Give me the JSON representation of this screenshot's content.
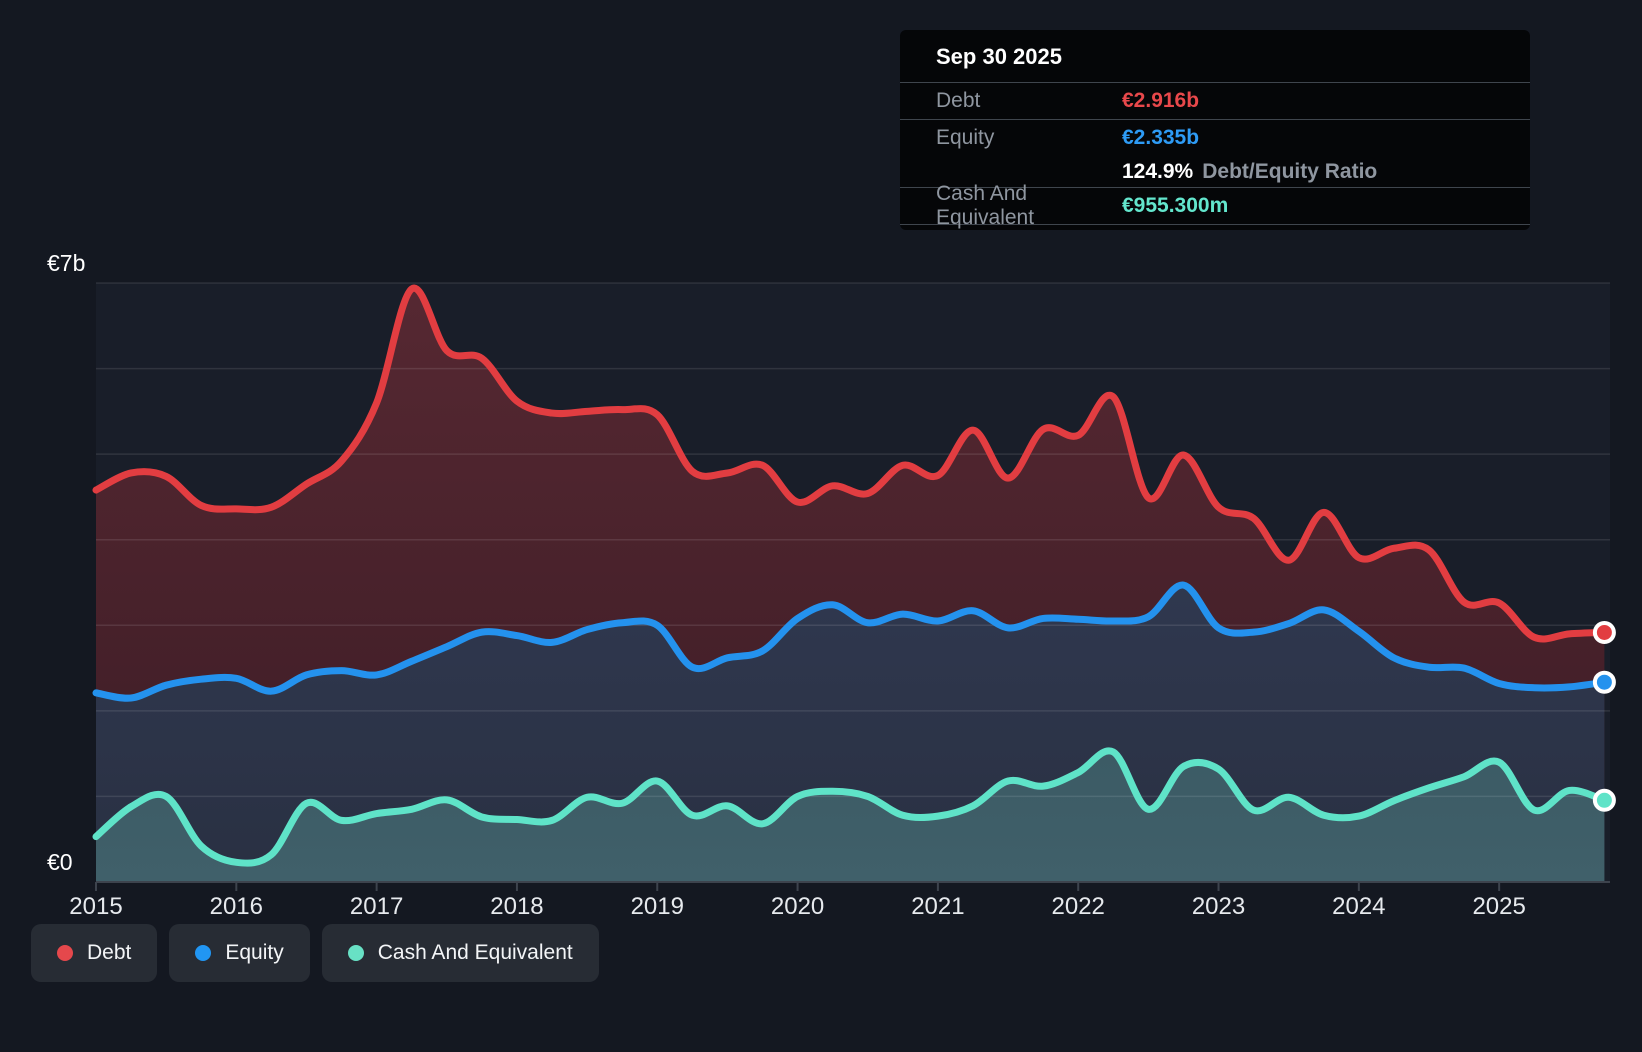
{
  "tooltip": {
    "date": "Sep 30 2025",
    "rows": [
      {
        "label": "Debt",
        "value": "€2.916b",
        "color": "#e8484b"
      },
      {
        "label": "Equity",
        "value": "€2.335b",
        "color": "#2e9bf5"
      },
      {
        "label": "Cash And Equivalent",
        "value": "€955.300m",
        "color": "#63e6cd"
      }
    ],
    "ratio": {
      "value": "124.9%",
      "label": "Debt/Equity Ratio"
    }
  },
  "legend": {
    "items": [
      {
        "label": "Debt",
        "color": "#e5484c"
      },
      {
        "label": "Equity",
        "color": "#2196f3"
      },
      {
        "label": "Cash And Equivalent",
        "color": "#68e1c5"
      }
    ]
  },
  "chart_data": {
    "type": "area",
    "title": "",
    "unit": "EUR billions",
    "xlim": [
      2015,
      2025.79
    ],
    "ylim": [
      0,
      7
    ],
    "grid_values": [
      1,
      2,
      3,
      4,
      5,
      6,
      7
    ],
    "ylabels": [
      {
        "text": "€7b",
        "value": 7
      },
      {
        "text": "€0",
        "value": 0
      }
    ],
    "xticks": [
      2015,
      2016,
      2017,
      2018,
      2019,
      2020,
      2021,
      2022,
      2023,
      2024,
      2025
    ],
    "xlabels": [
      "2015",
      "2016",
      "2017",
      "2018",
      "2019",
      "2020",
      "2021",
      "2022",
      "2023",
      "2024",
      "2025"
    ],
    "x": [
      2015.0,
      2015.25,
      2015.5,
      2015.75,
      2016.0,
      2016.25,
      2016.5,
      2016.75,
      2017.0,
      2017.25,
      2017.5,
      2017.75,
      2018.0,
      2018.25,
      2018.5,
      2018.75,
      2019.0,
      2019.25,
      2019.5,
      2019.75,
      2020.0,
      2020.25,
      2020.5,
      2020.75,
      2021.0,
      2021.25,
      2021.5,
      2021.75,
      2022.0,
      2022.25,
      2022.5,
      2022.75,
      2023.0,
      2023.25,
      2023.5,
      2023.75,
      2024.0,
      2024.25,
      2024.5,
      2024.75,
      2025.0,
      2025.25,
      2025.5,
      2025.75
    ],
    "series": [
      {
        "name": "Debt",
        "color": "#e23d41",
        "fill_top": "#562832",
        "fill_bottom": "#3c1c25",
        "last_value_label": "€2.916b",
        "values": [
          4.58,
          4.78,
          4.74,
          4.4,
          4.36,
          4.38,
          4.65,
          4.92,
          5.6,
          6.93,
          6.21,
          6.12,
          5.62,
          5.48,
          5.5,
          5.52,
          5.46,
          4.8,
          4.78,
          4.87,
          4.44,
          4.63,
          4.54,
          4.87,
          4.75,
          5.28,
          4.72,
          5.29,
          5.22,
          5.67,
          4.49,
          4.99,
          4.38,
          4.25,
          3.76,
          4.32,
          3.79,
          3.9,
          3.88,
          3.27,
          3.26,
          2.86,
          2.9,
          2.916
        ]
      },
      {
        "name": "Equity",
        "color": "#2492ee",
        "fill_top": "#36405c",
        "fill_bottom": "#293042",
        "last_value_label": "€2.335b",
        "values": [
          2.21,
          2.15,
          2.3,
          2.37,
          2.38,
          2.23,
          2.42,
          2.47,
          2.42,
          2.58,
          2.75,
          2.92,
          2.88,
          2.8,
          2.95,
          3.03,
          3.0,
          2.51,
          2.62,
          2.7,
          3.08,
          3.24,
          3.03,
          3.13,
          3.05,
          3.17,
          2.97,
          3.08,
          3.07,
          3.05,
          3.1,
          3.47,
          2.97,
          2.92,
          3.02,
          3.18,
          2.93,
          2.62,
          2.51,
          2.5,
          2.32,
          2.27,
          2.28,
          2.335
        ]
      },
      {
        "name": "Cash And Equivalent",
        "color": "#5fe3c8",
        "fill_top": "#2d4852",
        "fill_bottom": "#40606a",
        "last_value_label": "€955.300m",
        "values": [
          0.53,
          0.88,
          1.0,
          0.42,
          0.23,
          0.32,
          0.92,
          0.72,
          0.8,
          0.85,
          0.96,
          0.76,
          0.73,
          0.72,
          0.99,
          0.92,
          1.18,
          0.78,
          0.89,
          0.68,
          1.0,
          1.06,
          1.0,
          0.78,
          0.77,
          0.89,
          1.18,
          1.12,
          1.28,
          1.52,
          0.85,
          1.35,
          1.32,
          0.84,
          0.99,
          0.78,
          0.77,
          0.95,
          1.1,
          1.23,
          1.4,
          0.84,
          1.07,
          0.955
        ]
      }
    ],
    "legend_position": "bottom-left",
    "grid": true
  }
}
